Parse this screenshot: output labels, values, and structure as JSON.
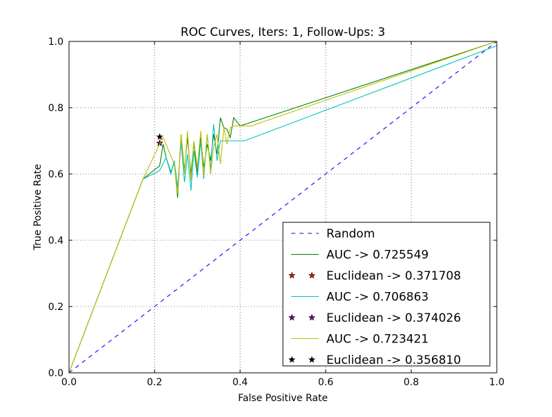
{
  "chart_data": {
    "type": "line",
    "title": "ROC Curves, Iters: 1, Follow-Ups: 3",
    "xlabel": "False Positive Rate",
    "ylabel": "True Positive Rate",
    "xlim": [
      0.0,
      1.0
    ],
    "ylim": [
      0.0,
      1.0
    ],
    "xticks": [
      "0.0",
      "0.2",
      "0.4",
      "0.6",
      "0.8",
      "1.0"
    ],
    "yticks": [
      "0.0",
      "0.2",
      "0.4",
      "0.6",
      "0.8",
      "1.0"
    ],
    "grid": true,
    "legend_position": "lower-right",
    "series": [
      {
        "name": "Random",
        "kind": "line",
        "style": "dashed",
        "color": "#0000ff",
        "x": [
          0.0,
          1.0
        ],
        "y": [
          0.0,
          1.0
        ]
      },
      {
        "name": "AUC -> 0.725549",
        "kind": "line",
        "color": "#008000",
        "x": [
          0.0,
          0.173,
          0.212,
          0.22,
          0.227,
          0.238,
          0.246,
          0.254,
          0.262,
          0.27,
          0.277,
          0.285,
          0.292,
          0.3,
          0.308,
          0.315,
          0.323,
          0.331,
          0.338,
          0.346,
          0.354,
          0.362,
          0.369,
          0.377,
          0.385,
          0.4,
          1.0
        ],
        "y": [
          0.0,
          0.585,
          0.625,
          0.69,
          0.65,
          0.605,
          0.635,
          0.528,
          0.72,
          0.61,
          0.71,
          0.6,
          0.695,
          0.6,
          0.71,
          0.62,
          0.69,
          0.64,
          0.72,
          0.66,
          0.77,
          0.74,
          0.735,
          0.71,
          0.77,
          0.745,
          1.0
        ]
      },
      {
        "name": "Euclidean -> 0.371708",
        "kind": "marker",
        "color": "#ff0000",
        "x": [
          0.212
        ],
        "y": [
          0.693
        ]
      },
      {
        "name": "AUC -> 0.706863",
        "kind": "line",
        "color": "#00bfbf",
        "x": [
          0.0,
          0.173,
          0.212,
          0.227,
          0.238,
          0.246,
          0.254,
          0.262,
          0.27,
          0.277,
          0.285,
          0.292,
          0.3,
          0.308,
          0.315,
          0.323,
          0.331,
          0.338,
          0.346,
          0.354,
          0.385,
          0.41,
          1.0
        ],
        "y": [
          0.0,
          0.585,
          0.61,
          0.65,
          0.6,
          0.64,
          0.56,
          0.695,
          0.575,
          0.66,
          0.55,
          0.67,
          0.59,
          0.7,
          0.585,
          0.72,
          0.61,
          0.75,
          0.64,
          0.7,
          0.7,
          0.7,
          0.987
        ]
      },
      {
        "name": "Euclidean -> 0.374026",
        "kind": "marker",
        "color": "#800080",
        "x": [
          0.212
        ],
        "y": [
          0.693
        ]
      },
      {
        "name": "AUC -> 0.723421",
        "kind": "line",
        "color": "#bfbf00",
        "x": [
          0.0,
          0.173,
          0.212,
          0.22,
          0.238,
          0.246,
          0.254,
          0.262,
          0.27,
          0.277,
          0.285,
          0.292,
          0.3,
          0.308,
          0.315,
          0.323,
          0.331,
          0.338,
          0.346,
          0.354,
          0.362,
          0.369,
          0.377,
          0.385,
          0.426,
          1.0
        ],
        "y": [
          0.0,
          0.585,
          0.69,
          0.71,
          0.655,
          0.63,
          0.54,
          0.72,
          0.6,
          0.73,
          0.58,
          0.7,
          0.62,
          0.73,
          0.595,
          0.72,
          0.6,
          0.68,
          0.72,
          0.63,
          0.74,
          0.69,
          0.74,
          0.745,
          0.745,
          1.0
        ]
      },
      {
        "name": "Euclidean -> 0.356810",
        "kind": "marker",
        "color": "#000000",
        "x": [
          0.212
        ],
        "y": [
          0.712
        ]
      }
    ]
  }
}
